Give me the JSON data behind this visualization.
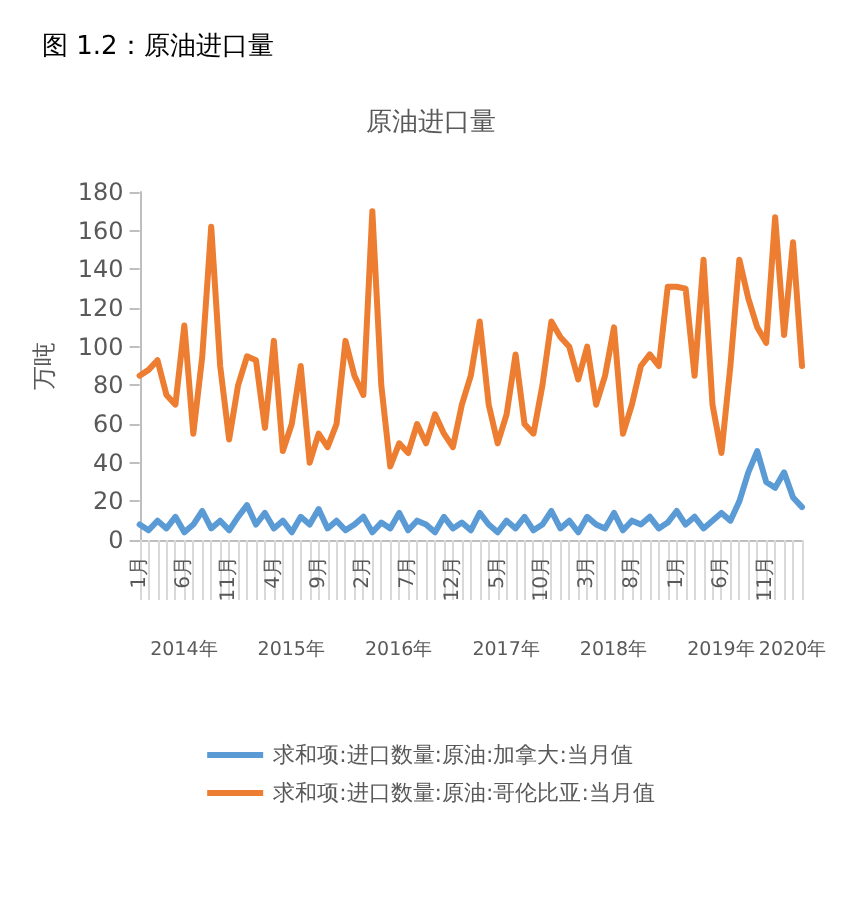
{
  "chart_data": {
    "type": "line",
    "title": "图 1.2：原油进口量",
    "subtitle": "原油进口量",
    "ylabel": "万吨",
    "categories": [
      "1月",
      null,
      null,
      null,
      null,
      "6月",
      null,
      null,
      null,
      null,
      "11月",
      null,
      null,
      null,
      null,
      "4月",
      null,
      null,
      null,
      null,
      "9月",
      null,
      null,
      null,
      null,
      "2月",
      null,
      null,
      null,
      null,
      "7月",
      null,
      null,
      null,
      null,
      "12月",
      null,
      null,
      null,
      null,
      "5月",
      null,
      null,
      null,
      null,
      "10月",
      null,
      null,
      null,
      null,
      "3月",
      null,
      null,
      null,
      null,
      "8月",
      null,
      null,
      null,
      null,
      "1月",
      null,
      null,
      null,
      null,
      "6月",
      null,
      null,
      null,
      null,
      "11月",
      null,
      null,
      null,
      null
    ],
    "annotations": [
      "2014年",
      "2015年",
      "2016年",
      "2017年",
      "2018年",
      "2019年",
      "2020年"
    ],
    "series": [
      {
        "name": "求和项:进口数量:原油:加拿大:当月值",
        "color": "#5b9bd5",
        "values": [
          8,
          5,
          10,
          6,
          12,
          4,
          8,
          15,
          6,
          10,
          5,
          12,
          18,
          8,
          14,
          6,
          10,
          4,
          12,
          8,
          16,
          6,
          10,
          5,
          8,
          12,
          4,
          9,
          6,
          14,
          5,
          10,
          8,
          4,
          12,
          6,
          9,
          5,
          14,
          8,
          4,
          10,
          6,
          12,
          5,
          8,
          15,
          6,
          10,
          4,
          12,
          8,
          6,
          14,
          5,
          10,
          8,
          12,
          6,
          9,
          15,
          8,
          12,
          6,
          10,
          14,
          10,
          20,
          35,
          46,
          30,
          27,
          35,
          22,
          17
        ]
      },
      {
        "name": "求和项:进口数量:原油:哥伦比亚:当月值",
        "color": "#ed7d31",
        "values": [
          85,
          88,
          93,
          75,
          70,
          111,
          55,
          95,
          162,
          90,
          52,
          80,
          95,
          93,
          58,
          103,
          46,
          60,
          90,
          40,
          55,
          48,
          60,
          103,
          85,
          75,
          170,
          80,
          38,
          50,
          45,
          60,
          50,
          65,
          55,
          48,
          70,
          85,
          113,
          70,
          50,
          65,
          96,
          60,
          55,
          80,
          113,
          105,
          100,
          83,
          100,
          70,
          85,
          110,
          55,
          70,
          90,
          96,
          90,
          131,
          131,
          130,
          85,
          145,
          70,
          45,
          90,
          145,
          125,
          110,
          102,
          167,
          106,
          154,
          90
        ]
      }
    ],
    "ylim": [
      0,
      180
    ],
    "yticks": [
      0,
      20,
      40,
      60,
      80,
      100,
      120,
      140,
      160,
      180
    ],
    "grid": false,
    "legend": "bottom",
    "marker": "none",
    "line_style": "solid"
  }
}
